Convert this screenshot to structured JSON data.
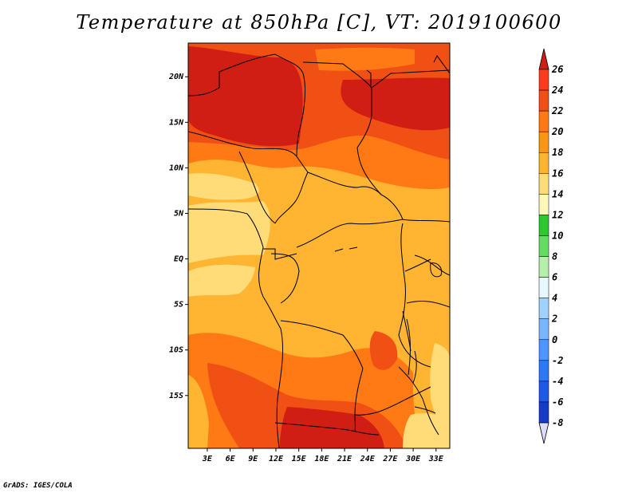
{
  "title": "Temperature at 850hPa [C], VT: 2019100600",
  "credit": "GrADS: IGES/COLA",
  "map": {
    "region": "Central and Southern Africa",
    "lat_ticks": [
      {
        "lat": 20,
        "label": "20N"
      },
      {
        "lat": 15,
        "label": "15N"
      },
      {
        "lat": 10,
        "label": "10N"
      },
      {
        "lat": 5,
        "label": "5N"
      },
      {
        "lat": 0,
        "label": "EQ"
      },
      {
        "lat": -5,
        "label": "5S"
      },
      {
        "lat": -10,
        "label": "10S"
      },
      {
        "lat": -15,
        "label": "15S"
      }
    ],
    "lon_ticks": [
      {
        "lon": 3,
        "label": "3E"
      },
      {
        "lon": 6,
        "label": "6E"
      },
      {
        "lon": 9,
        "label": "9E"
      },
      {
        "lon": 12,
        "label": "12E"
      },
      {
        "lon": 15,
        "label": "15E"
      },
      {
        "lon": 18,
        "label": "18E"
      },
      {
        "lon": 21,
        "label": "21E"
      },
      {
        "lon": 24,
        "label": "24E"
      },
      {
        "lon": 27,
        "label": "27E"
      },
      {
        "lon": 30,
        "label": "30E"
      },
      {
        "lon": 33,
        "label": "33E"
      }
    ]
  },
  "colorbar": {
    "levels": [
      {
        "label": "26",
        "color": "#ff3c1e"
      },
      {
        "label": "24",
        "color": "#f05014"
      },
      {
        "label": "22",
        "color": "#ff7a14"
      },
      {
        "label": "20",
        "color": "#fa9614"
      },
      {
        "label": "18",
        "color": "#ffb432"
      },
      {
        "label": "16",
        "color": "#ffdc78"
      },
      {
        "label": "14",
        "color": "#fff8b8"
      },
      {
        "label": "12",
        "color": "#2ec82e"
      },
      {
        "label": "10",
        "color": "#64dc64"
      },
      {
        "label": "8",
        "color": "#b4f0aa"
      },
      {
        "label": "6",
        "color": "#e8f8ff"
      },
      {
        "label": "4",
        "color": "#a0d2ff"
      },
      {
        "label": "2",
        "color": "#78b4ff"
      },
      {
        "label": "0",
        "color": "#4b96ff"
      },
      {
        "label": "-2",
        "color": "#2d78f5"
      },
      {
        "label": "-4",
        "color": "#1e5ae6"
      },
      {
        "label": "-6",
        "color": "#143cc8"
      },
      {
        "label": "-8",
        "color": "#0a1e96"
      }
    ],
    "top_color": "#d01e14",
    "bottom_color": "#dcdcf8"
  }
}
